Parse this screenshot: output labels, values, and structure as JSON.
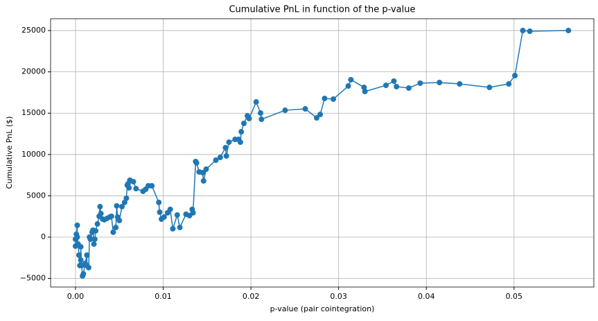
{
  "chart_data": {
    "type": "line",
    "title": "Cumulative PnL in function of the p-value",
    "xlabel": "p-value (pair cointegration)",
    "ylabel": "Cumulative PnL ($)",
    "color": "#1f77b4",
    "grid": true,
    "markers": true,
    "xlim": [
      -0.00284,
      0.0591
    ],
    "ylim": [
      -6040,
      26430
    ],
    "xticks": [
      {
        "value": 0,
        "label": "0.00"
      },
      {
        "value": 0.01,
        "label": "0.01"
      },
      {
        "value": 0.02,
        "label": "0.02"
      },
      {
        "value": 0.03,
        "label": "0.03"
      },
      {
        "value": 0.04,
        "label": "0.04"
      },
      {
        "value": 0.05,
        "label": "0.05"
      }
    ],
    "yticks": [
      {
        "value": -5000,
        "label": "−5000"
      },
      0,
      5000,
      10000,
      15000,
      20000,
      25000
    ],
    "x": [
      0.0,
      0.0,
      0.0001,
      0.0002,
      0.0002,
      0.0003,
      0.0004,
      0.0005,
      0.0006,
      0.0006,
      0.0007,
      0.0008,
      0.0009,
      0.0011,
      0.0013,
      0.0013,
      0.0015,
      0.0016,
      0.0017,
      0.0019,
      0.002,
      0.0021,
      0.0022,
      0.0023,
      0.0025,
      0.0027,
      0.0028,
      0.0029,
      0.0031,
      0.0033,
      0.0036,
      0.0039,
      0.0041,
      0.0043,
      0.0046,
      0.0047,
      0.0048,
      0.005,
      0.0053,
      0.0056,
      0.0058,
      0.0059,
      0.006,
      0.0061,
      0.0062,
      0.0066,
      0.0069,
      0.0077,
      0.008,
      0.0083,
      0.0087,
      0.0095,
      0.0096,
      0.0098,
      0.0101,
      0.0105,
      0.0108,
      0.0111,
      0.0116,
      0.0119,
      0.0126,
      0.013,
      0.0133,
      0.0134,
      0.0137,
      0.0138,
      0.0141,
      0.0145,
      0.0146,
      0.0149,
      0.016,
      0.0165,
      0.0171,
      0.0172,
      0.0175,
      0.0182,
      0.0186,
      0.0188,
      0.0189,
      0.0192,
      0.0196,
      0.0198,
      0.0206,
      0.0211,
      0.0212,
      0.0239,
      0.0262,
      0.0275,
      0.0279,
      0.0284,
      0.0294,
      0.0311,
      0.0314,
      0.0329,
      0.033,
      0.0354,
      0.0363,
      0.0366,
      0.038,
      0.0393,
      0.0415,
      0.0438,
      0.0472,
      0.0494,
      0.0501,
      0.051,
      0.0518,
      0.0562
    ],
    "values": [
      -1090,
      -250,
      340,
      1430,
      0,
      -840,
      -2180,
      -3440,
      -2770,
      -1170,
      -3440,
      -4700,
      -4450,
      -3190,
      -2180,
      -3440,
      -3690,
      0,
      -250,
      590,
      840,
      -840,
      -250,
      760,
      1590,
      2520,
      3690,
      2850,
      2180,
      2100,
      2270,
      2430,
      2520,
      590,
      1170,
      3780,
      2430,
      2010,
      3690,
      4200,
      4700,
      6290,
      6460,
      5960,
      6880,
      6710,
      5870,
      5540,
      5790,
      6210,
      6210,
      4200,
      3020,
      2180,
      2430,
      2940,
      3360,
      1010,
      2680,
      1170,
      2770,
      2600,
      3360,
      2940,
      9150,
      8980,
      7890,
      7800,
      6800,
      8220,
      9310,
      9650,
      10820,
      9820,
      11490,
      11830,
      11830,
      11490,
      12750,
      13760,
      14680,
      14350,
      16360,
      15020,
      14260,
      15350,
      15520,
      14430,
      14850,
      16780,
      16700,
      18290,
      19050,
      18120,
      17620,
      18370,
      18880,
      18210,
      18040,
      18630,
      18710,
      18540,
      18120,
      18540,
      19550,
      25000,
      24920,
      25000
    ]
  }
}
